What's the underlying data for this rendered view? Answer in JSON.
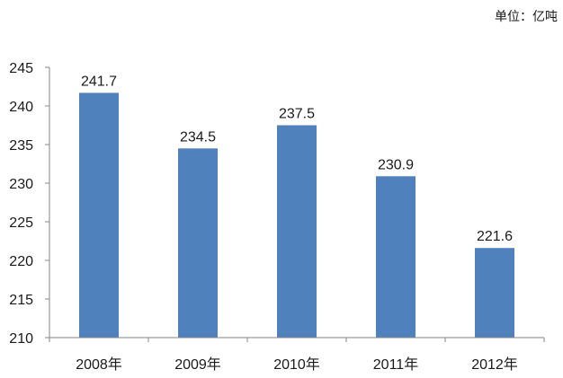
{
  "unit_label": "单位：亿吨",
  "colors": {
    "bar": "#4f81bd",
    "axis": "#868686",
    "text": "#1a1a1a"
  },
  "chart_data": {
    "type": "bar",
    "categories": [
      "2008年",
      "2009年",
      "2010年",
      "2011年",
      "2012年"
    ],
    "values": [
      241.7,
      234.5,
      237.5,
      230.9,
      221.6
    ],
    "data_labels": [
      "241.7",
      "234.5",
      "237.5",
      "230.9",
      "221.6"
    ],
    "ylim": [
      210,
      245
    ],
    "yticks": [
      210,
      215,
      220,
      225,
      230,
      235,
      240,
      245
    ],
    "grid": false,
    "legend": "none",
    "title": "",
    "xlabel": "",
    "ylabel": ""
  }
}
